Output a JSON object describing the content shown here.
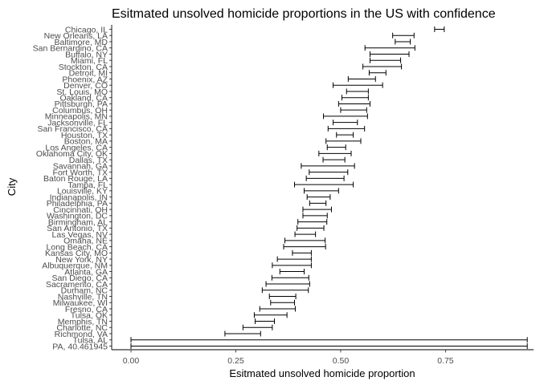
{
  "chart_data": {
    "type": "errorbar",
    "orientation": "horizontal",
    "title": "Esitmated unsolved homicide proportions in the US with confidence",
    "xlabel": "Esitmated unsolved homicide proportion",
    "ylabel": "City",
    "xlim": [
      -0.046,
      0.96
    ],
    "x_ticks": [
      0.0,
      0.25,
      0.5,
      0.75
    ],
    "x_tick_labels": [
      "0.00",
      "0.25",
      "0.50",
      "0.75"
    ],
    "grid": false,
    "legend": "none",
    "series": [
      {
        "city": "Chicago, IL",
        "low": 0.724,
        "high": 0.747
      },
      {
        "city": "New Orleans, LA",
        "low": 0.624,
        "high": 0.675
      },
      {
        "city": "Baltimore, MD",
        "low": 0.63,
        "high": 0.666
      },
      {
        "city": "San Bernardino, CA",
        "low": 0.558,
        "high": 0.677
      },
      {
        "city": "Buffalo, NY",
        "low": 0.57,
        "high": 0.663
      },
      {
        "city": "Miami, FL",
        "low": 0.57,
        "high": 0.643
      },
      {
        "city": "Stockton, CA",
        "low": 0.553,
        "high": 0.645
      },
      {
        "city": "Detroit, MI",
        "low": 0.568,
        "high": 0.608
      },
      {
        "city": "Phoenix, AZ",
        "low": 0.518,
        "high": 0.583
      },
      {
        "city": "Denver, CO",
        "low": 0.482,
        "high": 0.6
      },
      {
        "city": "St. Louis, MO",
        "low": 0.514,
        "high": 0.566
      },
      {
        "city": "Oakland, CA",
        "low": 0.503,
        "high": 0.566
      },
      {
        "city": "Pittsburgh, PA",
        "low": 0.495,
        "high": 0.57
      },
      {
        "city": "Columbus, OH",
        "low": 0.5,
        "high": 0.562
      },
      {
        "city": "Minneapolis, MN",
        "low": 0.459,
        "high": 0.564
      },
      {
        "city": "Jacksonville, FL",
        "low": 0.482,
        "high": 0.54
      },
      {
        "city": "San Francisco, CA",
        "low": 0.47,
        "high": 0.557
      },
      {
        "city": "Houston, TX",
        "low": 0.49,
        "high": 0.53
      },
      {
        "city": "Boston, MA",
        "low": 0.465,
        "high": 0.548
      },
      {
        "city": "Los Angeles, CA",
        "low": 0.468,
        "high": 0.512
      },
      {
        "city": "Oklahoma City, OK",
        "low": 0.448,
        "high": 0.525
      },
      {
        "city": "Dallas, TX",
        "low": 0.458,
        "high": 0.51
      },
      {
        "city": "Savannah, GA",
        "low": 0.406,
        "high": 0.533
      },
      {
        "city": "Fort Worth, TX",
        "low": 0.425,
        "high": 0.517
      },
      {
        "city": "Baton Rouge, LA",
        "low": 0.418,
        "high": 0.508
      },
      {
        "city": "Tampa, FL",
        "low": 0.39,
        "high": 0.53
      },
      {
        "city": "Louisville, KY",
        "low": 0.413,
        "high": 0.495
      },
      {
        "city": "Indianapolis, IN",
        "low": 0.42,
        "high": 0.475
      },
      {
        "city": "Philadelphia, PA",
        "low": 0.426,
        "high": 0.465
      },
      {
        "city": "Cincinnati, OH",
        "low": 0.41,
        "high": 0.478
      },
      {
        "city": "Washington, DC",
        "low": 0.41,
        "high": 0.468
      },
      {
        "city": "Birmingham, AL",
        "low": 0.398,
        "high": 0.467
      },
      {
        "city": "San Antonio, TX",
        "low": 0.396,
        "high": 0.46
      },
      {
        "city": "Las Vegas, NV",
        "low": 0.391,
        "high": 0.44
      },
      {
        "city": "Omaha, NE",
        "low": 0.367,
        "high": 0.463
      },
      {
        "city": "Long Beach, CA",
        "low": 0.364,
        "high": 0.464
      },
      {
        "city": "Kansas City, MO",
        "low": 0.385,
        "high": 0.43
      },
      {
        "city": "New York, NY",
        "low": 0.349,
        "high": 0.43
      },
      {
        "city": "Albuquerque, NM",
        "low": 0.337,
        "high": 0.43
      },
      {
        "city": "Atlanta, GA",
        "low": 0.355,
        "high": 0.413
      },
      {
        "city": "San Diego, CA",
        "low": 0.336,
        "high": 0.424
      },
      {
        "city": "Sacramento, CA",
        "low": 0.322,
        "high": 0.426
      },
      {
        "city": "Durham, NC",
        "low": 0.313,
        "high": 0.423
      },
      {
        "city": "Nashville, TN",
        "low": 0.33,
        "high": 0.393
      },
      {
        "city": "Milwaukee, WI",
        "low": 0.333,
        "high": 0.39
      },
      {
        "city": "Fresno, CA",
        "low": 0.307,
        "high": 0.392
      },
      {
        "city": "Tulsa, OK",
        "low": 0.294,
        "high": 0.372
      },
      {
        "city": "Memphis, TN",
        "low": 0.296,
        "high": 0.342
      },
      {
        "city": "Charlotte, NC",
        "low": 0.267,
        "high": 0.337
      },
      {
        "city": "Richmond, VA",
        "low": 0.224,
        "high": 0.309
      },
      {
        "city": "Tulsa, AL",
        "low": 0.0,
        "high": 0.945
      },
      {
        "city": "PA, 40.461945",
        "low": 0.0,
        "high": 0.945
      }
    ]
  }
}
